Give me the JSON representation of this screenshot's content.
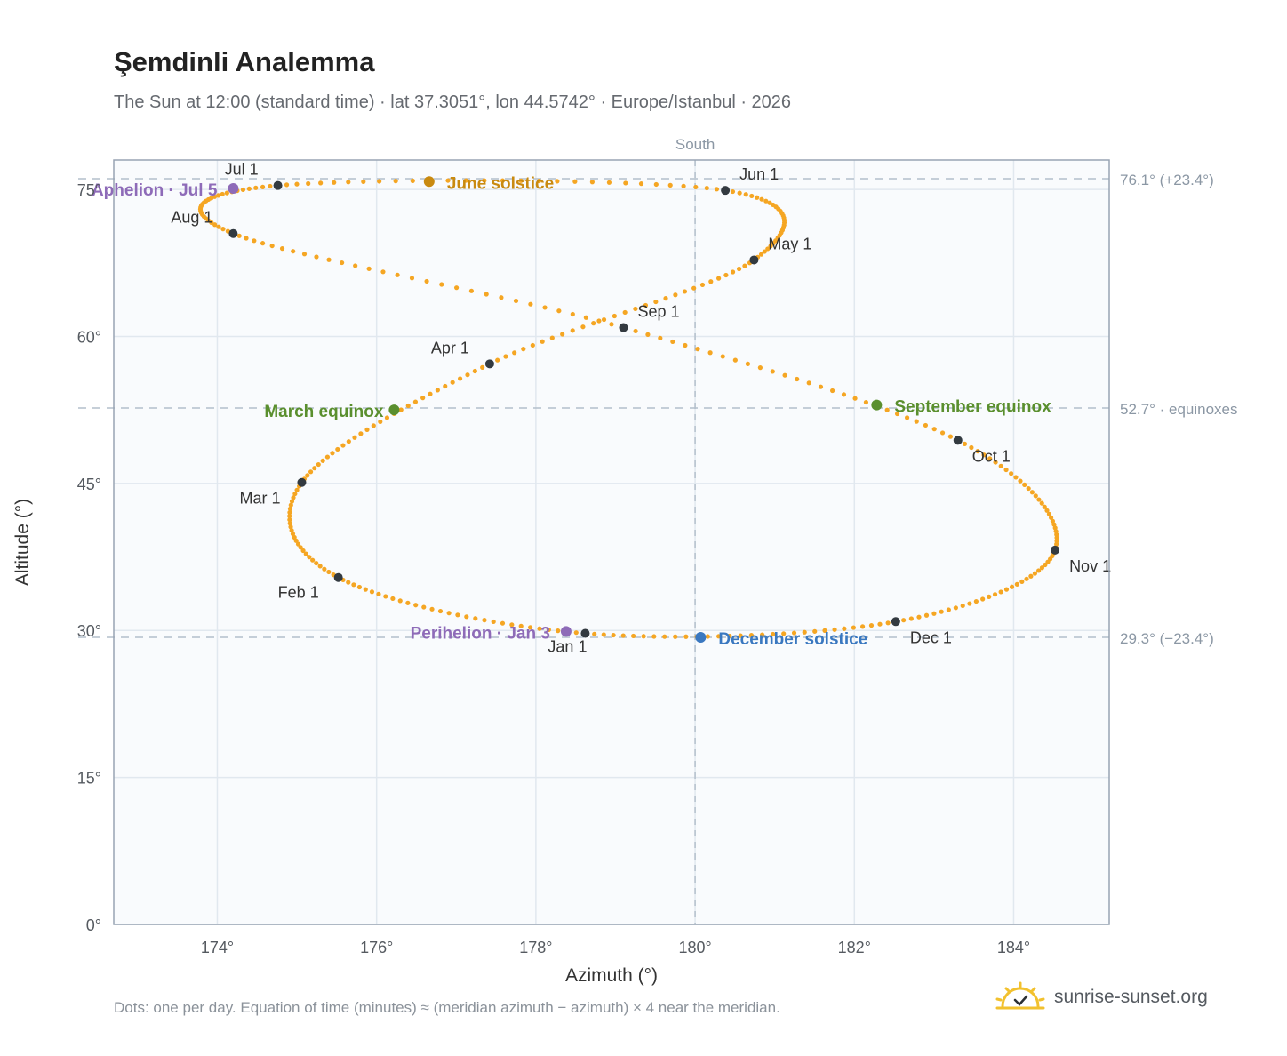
{
  "title": "Şemdinli Analemma",
  "subtitle": "The Sun at 12:00 (standard time) · lat 37.3051°, lon 44.5742° · Europe/Istanbul · 2026",
  "footnote": "Dots: one per day. Equation of time (minutes) ≈ (meridian azimuth − azimuth) × 4 near the meridian.",
  "brand": {
    "name": "sunrise-sunset.org",
    "icon": "sun-logo-icon"
  },
  "chart_data": {
    "type": "scatter",
    "xlabel": "Azimuth (°)",
    "ylabel": "Altitude (°)",
    "xlim": [
      172.7,
      185.2
    ],
    "ylim": [
      0,
      78
    ],
    "xticks": [
      174,
      176,
      178,
      180,
      182,
      184
    ],
    "xtick_labels": [
      "174°",
      "176°",
      "178°",
      "180°",
      "182°",
      "184°"
    ],
    "yticks": [
      0,
      15,
      30,
      45,
      60,
      75
    ],
    "ytick_labels": [
      "0°",
      "15°",
      "30°",
      "45°",
      "60°",
      "75°"
    ],
    "grid": true,
    "series_color": "#f5a623",
    "colors": {
      "month_marker": "#333a40",
      "equinox": "#5a8f2e",
      "june_solstice": "#c98a10",
      "december_solstice": "#3a78c0",
      "apsis": "#8e6bb8",
      "guide": "#b3bfcb"
    },
    "south_line": {
      "x": 180,
      "label": "South"
    },
    "reference_lines": [
      {
        "y": 76.1,
        "label": "76.1° (+23.4°)"
      },
      {
        "y": 52.7,
        "label": "52.7° · equinoxes"
      },
      {
        "y": 29.3,
        "label": "29.3° (−23.4°)"
      }
    ],
    "anchors": [
      {
        "label": "Jan 1",
        "doy": 0,
        "az": 178.62,
        "alt": 29.7
      },
      {
        "label": "Feb 1",
        "doy": 31,
        "az": 175.52,
        "alt": 35.4
      },
      {
        "label": "Mar 1",
        "doy": 59,
        "az": 175.06,
        "alt": 45.1
      },
      {
        "label": "Apr 1",
        "doy": 90,
        "az": 177.42,
        "alt": 57.2
      },
      {
        "label": "May 1",
        "doy": 120,
        "az": 180.74,
        "alt": 67.8
      },
      {
        "label": "Jun 1",
        "doy": 151,
        "az": 180.38,
        "alt": 74.9
      },
      {
        "label": "Jul 1",
        "doy": 181,
        "az": 174.76,
        "alt": 75.4
      },
      {
        "label": "Aug 1",
        "doy": 212,
        "az": 174.2,
        "alt": 70.5
      },
      {
        "label": "Sep 1",
        "doy": 243,
        "az": 179.1,
        "alt": 60.9
      },
      {
        "label": "Oct 1",
        "doy": 273,
        "az": 183.3,
        "alt": 49.4
      },
      {
        "label": "Nov 1",
        "doy": 304,
        "az": 184.52,
        "alt": 38.2
      },
      {
        "label": "Dec 1",
        "doy": 334,
        "az": 182.52,
        "alt": 30.9
      },
      {
        "label": "",
        "doy": 365,
        "az": 178.62,
        "alt": 29.7
      }
    ],
    "month_markers": [
      {
        "label": "Jan 1",
        "az": 178.62,
        "alt": 29.7
      },
      {
        "label": "Feb 1",
        "az": 175.52,
        "alt": 35.4
      },
      {
        "label": "Mar 1",
        "az": 175.06,
        "alt": 45.1
      },
      {
        "label": "Apr 1",
        "az": 177.42,
        "alt": 57.2
      },
      {
        "label": "May 1",
        "az": 180.74,
        "alt": 67.8
      },
      {
        "label": "Jun 1",
        "az": 180.38,
        "alt": 74.9
      },
      {
        "label": "Jul 1",
        "az": 174.76,
        "alt": 75.4
      },
      {
        "label": "Aug 1",
        "az": 174.2,
        "alt": 70.5
      },
      {
        "label": "Sep 1",
        "az": 179.1,
        "alt": 60.9
      },
      {
        "label": "Oct 1",
        "az": 183.3,
        "alt": 49.4
      },
      {
        "label": "Nov 1",
        "az": 184.52,
        "alt": 38.2
      },
      {
        "label": "Dec 1",
        "az": 182.52,
        "alt": 30.9
      }
    ],
    "events": [
      {
        "label": "March equinox",
        "az": 176.22,
        "alt": 52.5,
        "color": "#5a8f2e"
      },
      {
        "label": "June solstice",
        "az": 176.66,
        "alt": 75.8,
        "color": "#c98a10"
      },
      {
        "label": "September equinox",
        "az": 182.28,
        "alt": 53.0,
        "color": "#5a8f2e"
      },
      {
        "label": "December solstice",
        "az": 180.07,
        "alt": 29.3,
        "color": "#3a78c0"
      },
      {
        "label": "Perihelion · Jan 3",
        "az": 178.38,
        "alt": 29.9,
        "color": "#8e6bb8"
      },
      {
        "label": "Aphelion · Jul 5",
        "az": 174.2,
        "alt": 75.1,
        "color": "#8e6bb8"
      }
    ]
  }
}
